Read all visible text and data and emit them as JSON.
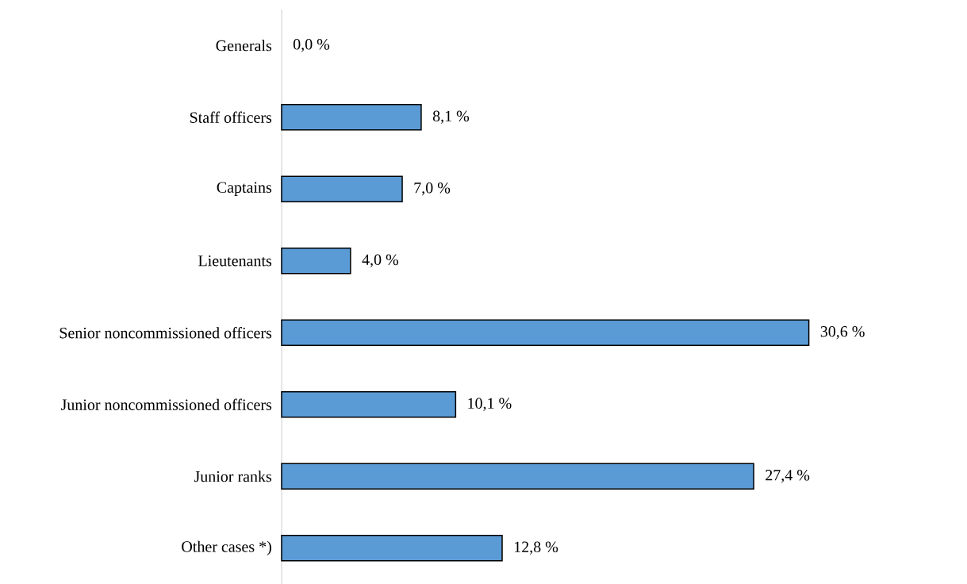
{
  "chart_data": {
    "type": "bar",
    "orientation": "horizontal",
    "categories": [
      "Generals",
      "Staff officers",
      "Captains",
      "Lieutenants",
      "Senior noncommissioned officers",
      "Junior noncommissioned officers",
      "Junior ranks",
      "Other cases *)"
    ],
    "values": [
      0.0,
      8.1,
      7.0,
      4.0,
      30.6,
      10.1,
      27.4,
      12.8
    ],
    "value_labels": [
      "0,0 %",
      "8,1 %",
      "7,0 %",
      "4,0 %",
      "30,6 %",
      "10,1 %",
      "27,4 %",
      "12,8 %"
    ],
    "color": "#5b9bd5",
    "tick_labels": "y"
  }
}
